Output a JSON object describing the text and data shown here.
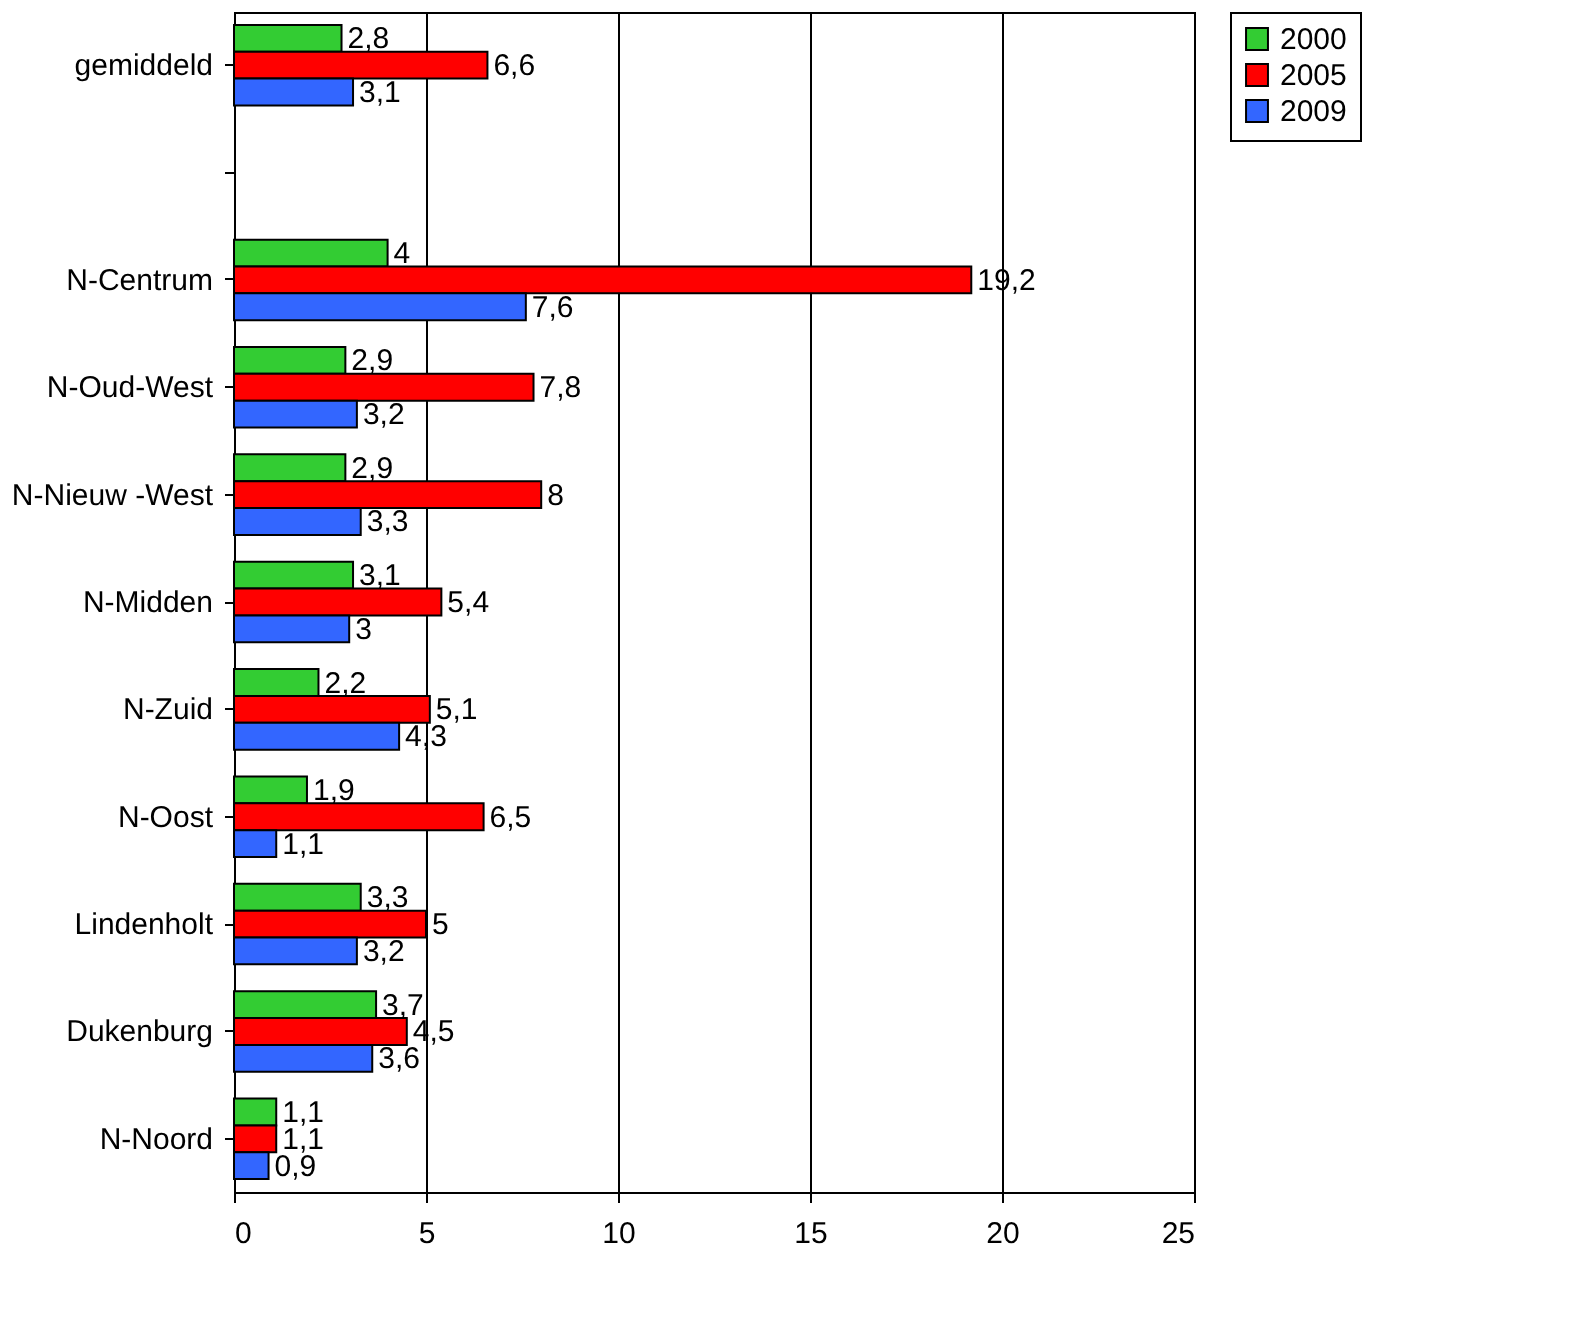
{
  "chart_data": {
    "type": "bar",
    "orientation": "horizontal",
    "categories": [
      "gemiddeld",
      null,
      "N-Centrum",
      "N-Oud-West",
      "N-Nieuw -West",
      "N-Midden",
      "N-Zuid",
      "N-Oost",
      "Lindenholt",
      "Dukenburg",
      "N-Noord"
    ],
    "series": [
      {
        "name": "2000",
        "color": "#33cc33",
        "values": [
          2.8,
          null,
          4,
          2.9,
          2.9,
          3.1,
          2.2,
          1.9,
          3.3,
          3.7,
          1.1
        ],
        "value_labels": [
          "2,8",
          null,
          "4",
          "2,9",
          "2,9",
          "3,1",
          "2,2",
          "1,9",
          "3,3",
          "3,7",
          "1,1"
        ]
      },
      {
        "name": "2005",
        "color": "#ff0000",
        "values": [
          6.6,
          null,
          19.2,
          7.8,
          8,
          5.4,
          5.1,
          6.5,
          5,
          4.5,
          1.1
        ],
        "value_labels": [
          "6,6",
          null,
          "19,2",
          "7,8",
          "8",
          "5,4",
          "5,1",
          "6,5",
          "5",
          "4,5",
          "1,1"
        ]
      },
      {
        "name": "2009",
        "color": "#3366ff",
        "values": [
          3.1,
          null,
          7.6,
          3.2,
          3.3,
          3,
          4.3,
          1.1,
          3.2,
          3.6,
          0.9
        ],
        "value_labels": [
          "3,1",
          null,
          "7,6",
          "3,2",
          "3,3",
          "3",
          "4,3",
          "1,1",
          "3,2",
          "3,6",
          "0,9"
        ]
      }
    ],
    "xlim": [
      0,
      25
    ],
    "xticks": [
      0,
      5,
      10,
      15,
      20,
      25
    ],
    "grid": "x",
    "legend": "right"
  }
}
